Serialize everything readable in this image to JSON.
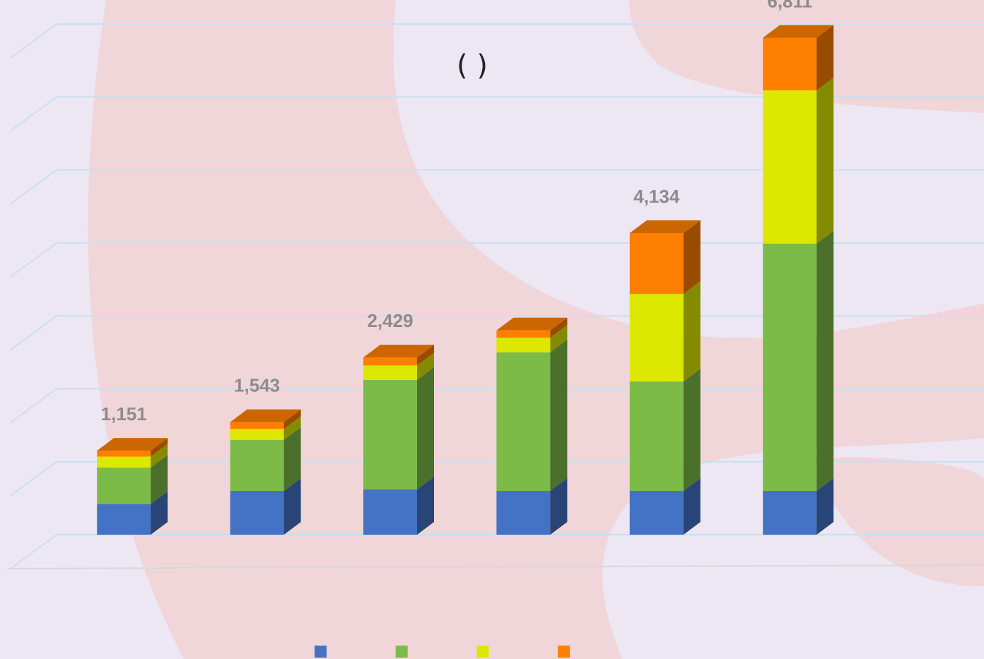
{
  "chart_data": {
    "type": "stacked-bar",
    "title": "(      )",
    "categories": [
      null,
      null,
      null,
      null,
      null,
      null
    ],
    "series": [
      {
        "color": "#4472c4",
        "values": [
          420,
          600,
          620,
          600,
          600,
          600
        ]
      },
      {
        "color": "#7cbb48",
        "values": [
          500,
          700,
          1500,
          1900,
          1500,
          3391
        ]
      },
      {
        "color": "#dde800",
        "values": [
          150,
          150,
          200,
          200,
          1200,
          2100
        ]
      },
      {
        "color": "#ff7f00",
        "values": [
          81,
          93,
          109,
          100,
          834,
          720
        ]
      }
    ],
    "totals": [
      1151,
      1543,
      2429,
      null,
      4134,
      6811
    ],
    "total_labels": [
      "1,151",
      "1,543",
      "2,429",
      null,
      "4,134",
      "6,811"
    ],
    "ylim": [
      0,
      7000
    ],
    "yticks": [
      0,
      1000,
      2000,
      3000,
      4000,
      5000,
      6000,
      7000
    ],
    "grid": true
  }
}
